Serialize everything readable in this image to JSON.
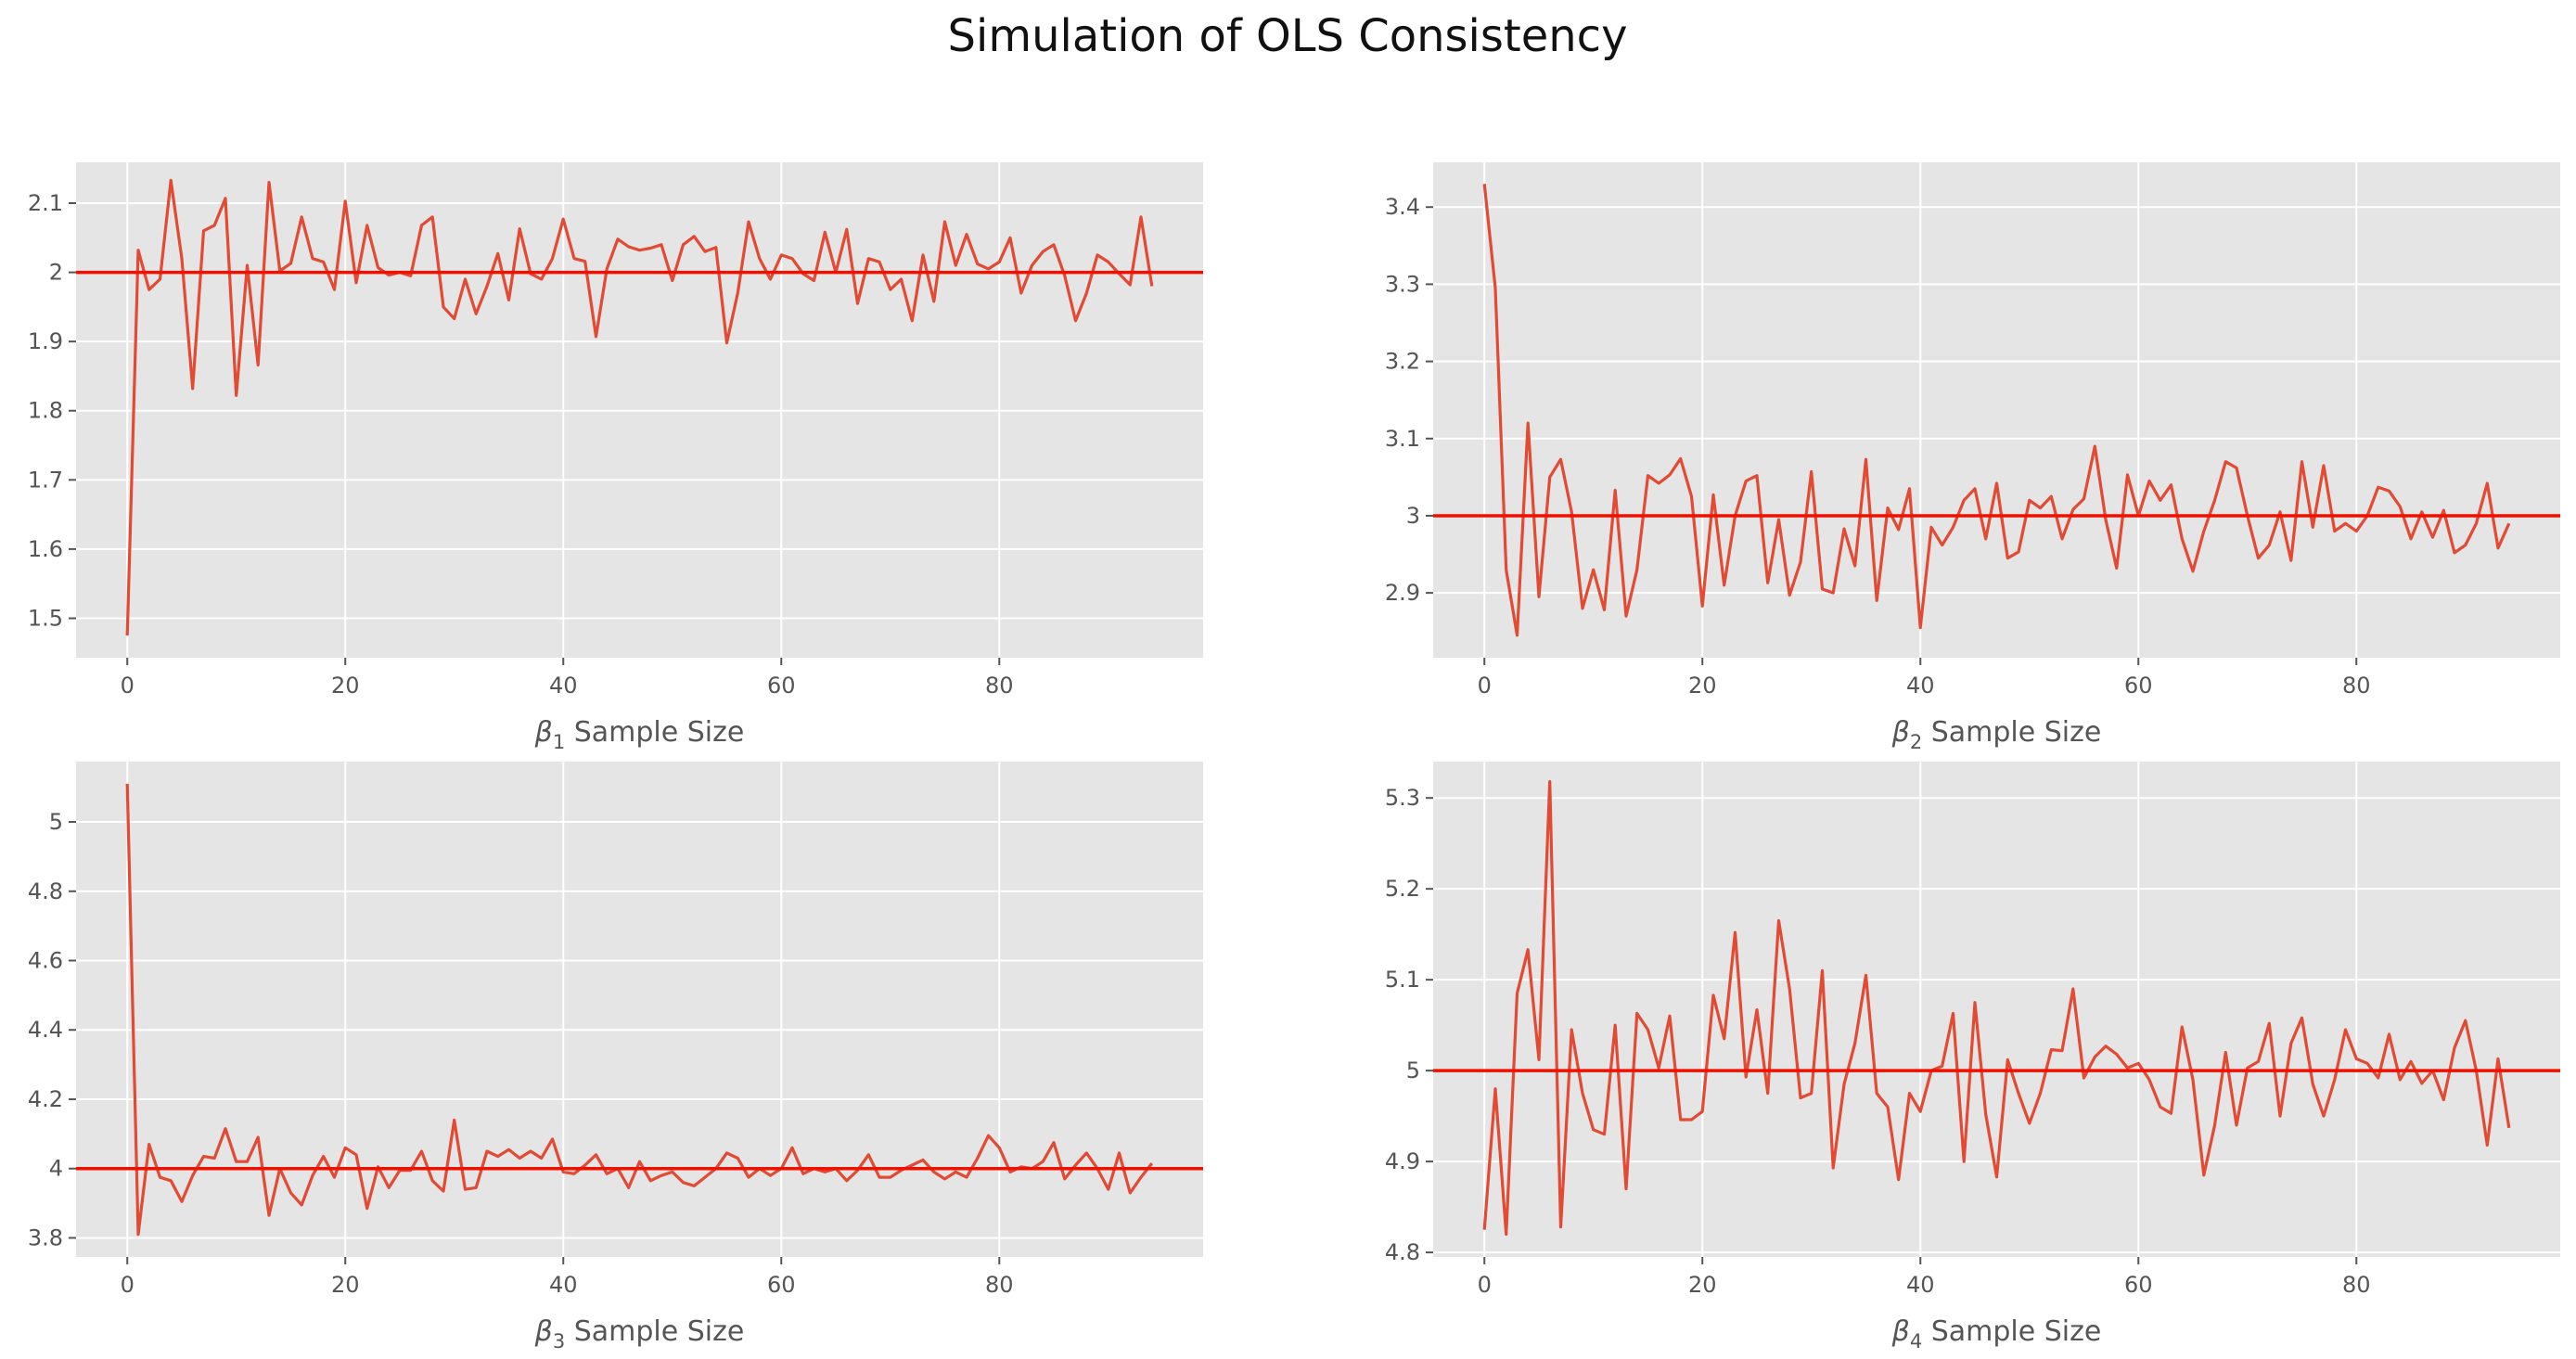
{
  "figure": {
    "title": "Simulation of OLS Consistency",
    "background": "#ffffff"
  },
  "style": {
    "panel_background": "#e5e5e5",
    "grid_color": "#ffffff",
    "series_color": "#e24a33",
    "reference_line_color": "#ee1100",
    "tick_color": "#555555"
  },
  "chart_data": [
    {
      "type": "line",
      "xlabel": "Sample Size",
      "xlabel_symbol": "β",
      "xlabel_subscript": "1",
      "xticks": [
        0,
        20,
        40,
        60,
        80
      ],
      "yticks": [
        1.5,
        1.6,
        1.7,
        1.8,
        1.9,
        2.0,
        2.1
      ],
      "xlim": [
        -4.7,
        98.7
      ],
      "ylim": [
        1.443,
        2.159
      ],
      "grid": true,
      "reference_line": 2.0,
      "x_start": 0,
      "values": [
        1.475,
        2.032,
        1.975,
        1.99,
        2.133,
        2.02,
        1.832,
        2.06,
        2.068,
        2.107,
        1.822,
        2.01,
        1.866,
        2.13,
        2.002,
        2.013,
        2.08,
        2.02,
        2.015,
        1.975,
        2.103,
        1.985,
        2.068,
        2.007,
        1.996,
        2.0,
        1.995,
        2.068,
        2.08,
        1.95,
        1.933,
        1.99,
        1.94,
        1.98,
        2.027,
        1.96,
        2.063,
        1.998,
        1.99,
        2.02,
        2.077,
        2.02,
        2.016,
        1.907,
        2.005,
        2.048,
        2.037,
        2.032,
        2.035,
        2.04,
        1.988,
        2.04,
        2.052,
        2.03,
        2.036,
        1.898,
        1.97,
        2.073,
        2.02,
        1.99,
        2.025,
        2.02,
        1.998,
        1.988,
        2.058,
        2.0,
        2.062,
        1.955,
        2.02,
        2.015,
        1.975,
        1.99,
        1.93,
        2.025,
        1.958,
        2.073,
        2.01,
        2.055,
        2.012,
        2.005,
        2.015,
        2.05,
        1.97,
        2.01,
        2.03,
        2.04,
        1.995,
        1.93,
        1.97,
        2.025,
        2.015,
        1.998,
        1.982,
        2.08,
        1.98
      ]
    },
    {
      "type": "line",
      "xlabel": "Sample Size",
      "xlabel_symbol": "β",
      "xlabel_subscript": "2",
      "xticks": [
        0,
        20,
        40,
        60,
        80
      ],
      "yticks": [
        2.9,
        3.0,
        3.1,
        3.2,
        3.3,
        3.4
      ],
      "xlim": [
        -4.7,
        98.7
      ],
      "ylim": [
        2.816,
        3.458
      ],
      "grid": true,
      "reference_line": 3.0,
      "x_start": 0,
      "values": [
        3.43,
        3.295,
        2.93,
        2.845,
        3.12,
        2.895,
        3.05,
        3.073,
        3.005,
        2.88,
        2.93,
        2.878,
        3.033,
        2.87,
        2.93,
        3.052,
        3.042,
        3.053,
        3.074,
        3.025,
        2.883,
        3.027,
        2.91,
        3.0,
        3.045,
        3.052,
        2.913,
        2.995,
        2.897,
        2.94,
        3.057,
        2.905,
        2.9,
        2.983,
        2.935,
        3.073,
        2.89,
        3.01,
        2.982,
        3.035,
        2.855,
        2.985,
        2.962,
        2.985,
        3.02,
        3.035,
        2.97,
        3.042,
        2.945,
        2.953,
        3.02,
        3.01,
        3.025,
        2.97,
        3.008,
        3.022,
        3.09,
        2.995,
        2.932,
        3.053,
        3.0,
        3.045,
        3.02,
        3.04,
        2.97,
        2.928,
        2.98,
        3.02,
        3.07,
        3.062,
        3.0,
        2.945,
        2.962,
        3.005,
        2.942,
        3.07,
        2.985,
        3.065,
        2.98,
        2.99,
        2.98,
        3.0,
        3.037,
        3.032,
        3.012,
        2.97,
        3.005,
        2.972,
        3.007,
        2.952,
        2.962,
        2.99,
        3.042,
        2.958,
        2.99
      ]
    },
    {
      "type": "line",
      "xlabel": "Sample Size",
      "xlabel_symbol": "β",
      "xlabel_subscript": "3",
      "xticks": [
        0,
        20,
        40,
        60,
        80
      ],
      "yticks": [
        3.8,
        4.0,
        4.2,
        4.4,
        4.6,
        4.8,
        5.0
      ],
      "xlim": [
        -4.7,
        98.7
      ],
      "ylim": [
        3.745,
        5.174
      ],
      "grid": true,
      "reference_line": 4.0,
      "x_start": 0,
      "values": [
        5.11,
        3.81,
        4.07,
        3.975,
        3.965,
        3.905,
        3.98,
        4.035,
        4.03,
        4.115,
        4.02,
        4.02,
        4.09,
        3.865,
        4.0,
        3.93,
        3.895,
        3.98,
        4.035,
        3.975,
        4.06,
        4.04,
        3.885,
        4.005,
        3.945,
        3.995,
        3.995,
        4.05,
        3.965,
        3.935,
        4.14,
        3.94,
        3.945,
        4.05,
        4.035,
        4.055,
        4.03,
        4.05,
        4.03,
        4.085,
        3.99,
        3.985,
        4.01,
        4.04,
        3.985,
        4.0,
        3.945,
        4.02,
        3.965,
        3.98,
        3.99,
        3.96,
        3.95,
        3.975,
        4.0,
        4.045,
        4.03,
        3.975,
        4.0,
        3.98,
        4.0,
        4.06,
        3.985,
        4.0,
        3.99,
        4.0,
        3.965,
        3.995,
        4.04,
        3.975,
        3.975,
        3.995,
        4.01,
        4.025,
        3.99,
        3.97,
        3.99,
        3.975,
        4.03,
        4.095,
        4.06,
        3.99,
        4.005,
        4.0,
        4.02,
        4.075,
        3.97,
        4.01,
        4.045,
        4.0,
        3.94,
        4.045,
        3.93,
        3.975,
        4.015
      ]
    },
    {
      "type": "line",
      "xlabel": "Sample Size",
      "xlabel_symbol": "β",
      "xlabel_subscript": "4",
      "xticks": [
        0,
        20,
        40,
        60,
        80
      ],
      "yticks": [
        4.8,
        4.9,
        5.0,
        5.1,
        5.2,
        5.3
      ],
      "xlim": [
        -4.7,
        98.7
      ],
      "ylim": [
        4.795,
        5.34
      ],
      "grid": true,
      "reference_line": 5.0,
      "x_start": 0,
      "values": [
        4.825,
        4.98,
        4.82,
        5.085,
        5.133,
        5.012,
        5.318,
        4.828,
        5.045,
        4.975,
        4.935,
        4.93,
        5.05,
        4.87,
        5.063,
        5.045,
        5.003,
        5.06,
        4.946,
        4.946,
        4.955,
        5.083,
        5.035,
        5.152,
        4.993,
        5.067,
        4.975,
        5.165,
        5.09,
        4.97,
        4.975,
        5.11,
        4.893,
        4.985,
        5.03,
        5.105,
        4.975,
        4.96,
        4.88,
        4.975,
        4.955,
        5.0,
        5.005,
        5.063,
        4.9,
        5.075,
        4.952,
        4.883,
        5.012,
        4.975,
        4.942,
        4.975,
        5.023,
        5.022,
        5.09,
        4.992,
        5.015,
        5.027,
        5.018,
        5.003,
        5.008,
        4.99,
        4.96,
        4.953,
        5.048,
        4.99,
        4.885,
        4.94,
        5.02,
        4.94,
        5.003,
        5.01,
        5.052,
        4.95,
        5.03,
        5.058,
        4.985,
        4.95,
        4.99,
        5.045,
        5.013,
        5.008,
        4.992,
        5.04,
        4.99,
        5.01,
        4.986,
        5.0,
        4.968,
        5.025,
        5.055,
        5.0,
        4.918,
        5.013,
        4.937
      ]
    }
  ]
}
